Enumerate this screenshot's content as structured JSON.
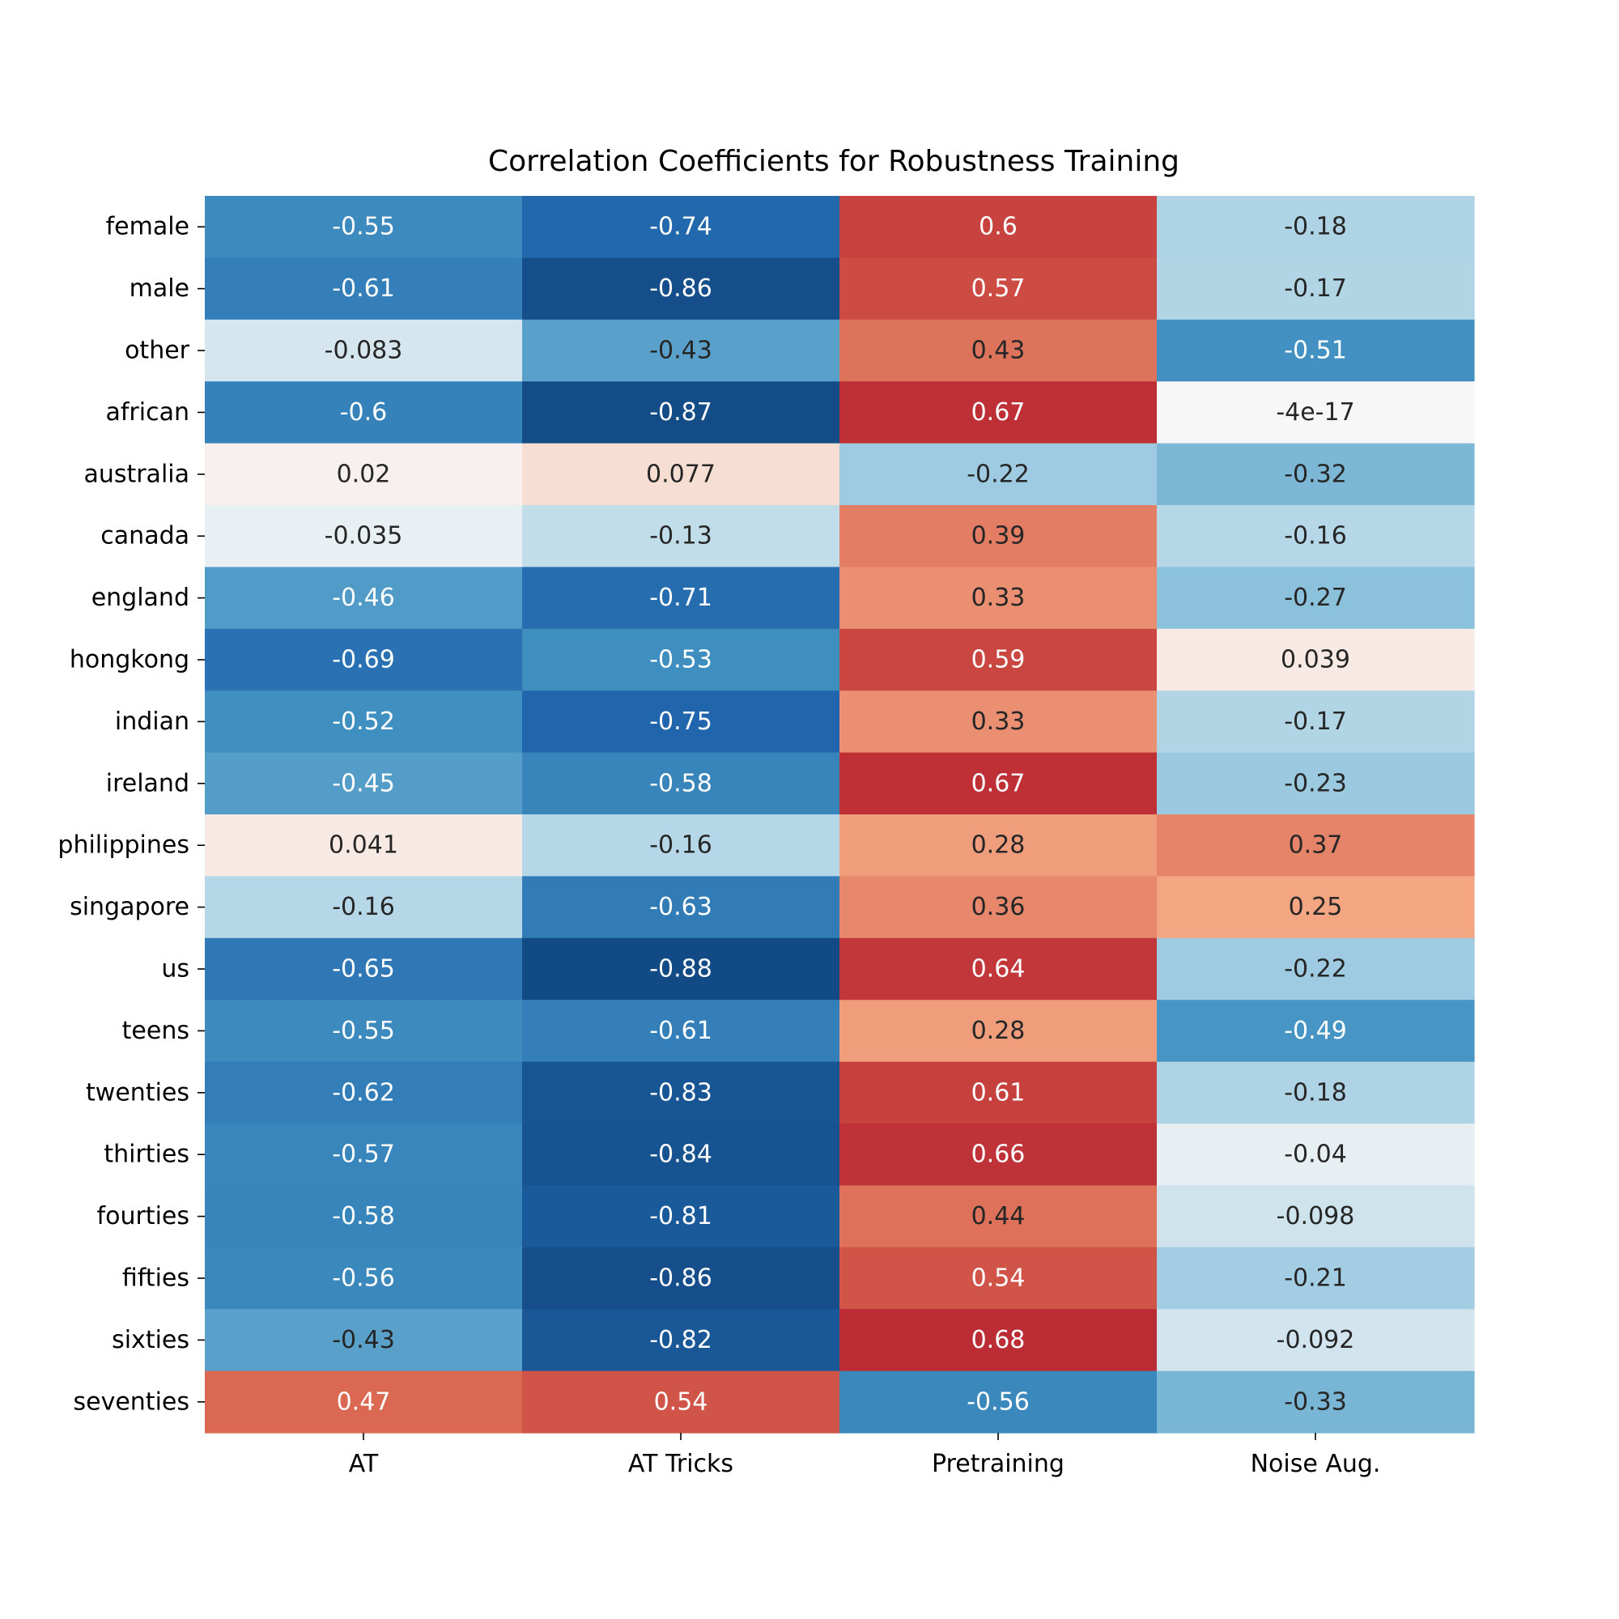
{
  "chart_data": {
    "type": "heatmap",
    "title": "Correlation Coefficients for Robustness Training",
    "xlabel": "",
    "ylabel": "",
    "columns": [
      "AT",
      "AT Tricks",
      "Pretraining",
      "Noise Aug."
    ],
    "rows": [
      "female",
      "male",
      "other",
      "african",
      "australia",
      "canada",
      "england",
      "hongkong",
      "indian",
      "ireland",
      "philippines",
      "singapore",
      "us",
      "teens",
      "twenties",
      "thirties",
      "fourties",
      "fifties",
      "sixties",
      "seventies"
    ],
    "values": [
      [
        -0.55,
        -0.74,
        0.6,
        -0.18
      ],
      [
        -0.61,
        -0.86,
        0.57,
        -0.17
      ],
      [
        -0.083,
        -0.43,
        0.43,
        -0.51
      ],
      [
        -0.6,
        -0.87,
        0.67,
        -4e-17
      ],
      [
        0.02,
        0.077,
        -0.22,
        -0.32
      ],
      [
        -0.035,
        -0.13,
        0.39,
        -0.16
      ],
      [
        -0.46,
        -0.71,
        0.33,
        -0.27
      ],
      [
        -0.69,
        -0.53,
        0.59,
        0.039
      ],
      [
        -0.52,
        -0.75,
        0.33,
        -0.17
      ],
      [
        -0.45,
        -0.58,
        0.67,
        -0.23
      ],
      [
        0.041,
        -0.16,
        0.28,
        0.37
      ],
      [
        -0.16,
        -0.63,
        0.36,
        0.25
      ],
      [
        -0.65,
        -0.88,
        0.64,
        -0.22
      ],
      [
        -0.55,
        -0.61,
        0.28,
        -0.49
      ],
      [
        -0.62,
        -0.83,
        0.61,
        -0.18
      ],
      [
        -0.57,
        -0.84,
        0.66,
        -0.04
      ],
      [
        -0.58,
        -0.81,
        0.44,
        -0.098
      ],
      [
        -0.56,
        -0.86,
        0.54,
        -0.21
      ],
      [
        -0.43,
        -0.82,
        0.68,
        -0.092
      ],
      [
        0.47,
        0.54,
        -0.56,
        -0.33
      ]
    ],
    "annotations": [
      [
        "-0.55",
        "-0.74",
        "0.6",
        "-0.18"
      ],
      [
        "-0.61",
        "-0.86",
        "0.57",
        "-0.17"
      ],
      [
        "-0.083",
        "-0.43",
        "0.43",
        "-0.51"
      ],
      [
        "-0.6",
        "-0.87",
        "0.67",
        "-4e-17"
      ],
      [
        "0.02",
        "0.077",
        "-0.22",
        "-0.32"
      ],
      [
        "-0.035",
        "-0.13",
        "0.39",
        "-0.16"
      ],
      [
        "-0.46",
        "-0.71",
        "0.33",
        "-0.27"
      ],
      [
        "-0.69",
        "-0.53",
        "0.59",
        "0.039"
      ],
      [
        "-0.52",
        "-0.75",
        "0.33",
        "-0.17"
      ],
      [
        "-0.45",
        "-0.58",
        "0.67",
        "-0.23"
      ],
      [
        "0.041",
        "-0.16",
        "0.28",
        "0.37"
      ],
      [
        "-0.16",
        "-0.63",
        "0.36",
        "0.25"
      ],
      [
        "-0.65",
        "-0.88",
        "0.64",
        "-0.22"
      ],
      [
        "-0.55",
        "-0.61",
        "0.28",
        "-0.49"
      ],
      [
        "-0.62",
        "-0.83",
        "0.61",
        "-0.18"
      ],
      [
        "-0.57",
        "-0.84",
        "0.66",
        "-0.04"
      ],
      [
        "-0.58",
        "-0.81",
        "0.44",
        "-0.098"
      ],
      [
        "-0.56",
        "-0.86",
        "0.54",
        "-0.21"
      ],
      [
        "-0.43",
        "-0.82",
        "0.68",
        "-0.092"
      ],
      [
        "0.47",
        "0.54",
        "-0.56",
        "-0.33"
      ]
    ],
    "colormap": "RdBu_r",
    "vmin": -1,
    "vmax": 1,
    "colorbar": false,
    "grid": false,
    "legend": "none"
  }
}
